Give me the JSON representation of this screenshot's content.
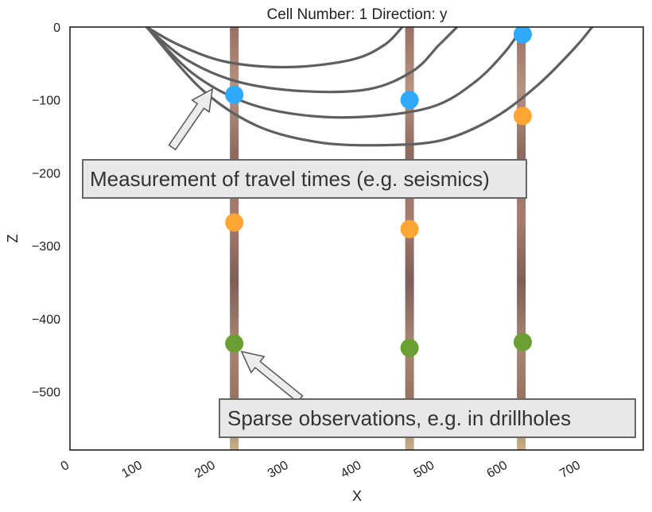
{
  "chart_data": {
    "type": "scatter",
    "title": "Cell Number: 1 Direction: y",
    "xlabel": "X",
    "ylabel": "Z",
    "xlim": [
      0,
      785
    ],
    "ylim": [
      -580,
      0
    ],
    "x_ticks": [
      0,
      100,
      200,
      300,
      400,
      500,
      600,
      700
    ],
    "y_ticks": [
      0,
      -100,
      -200,
      -300,
      -400,
      -500
    ],
    "grid": false,
    "drillholes": [
      {
        "x": 225,
        "z_top": 0,
        "z_bottom": -580
      },
      {
        "x": 465,
        "z_top": 0,
        "z_bottom": -580
      },
      {
        "x": 618,
        "z_top": 0,
        "z_bottom": -580
      }
    ],
    "series": [
      {
        "color": "#2ea9fb",
        "points": [
          [
            225,
            -93
          ],
          [
            465,
            -100
          ],
          [
            620,
            -10
          ]
        ]
      },
      {
        "color": "#ffa534",
        "points": [
          [
            225,
            -268
          ],
          [
            465,
            -277
          ],
          [
            620,
            -122
          ]
        ]
      },
      {
        "color": "#6a9f33",
        "points": [
          [
            225,
            -434
          ],
          [
            465,
            -440
          ],
          [
            620,
            -432
          ]
        ]
      }
    ],
    "curves": [
      [
        [
          105,
          0
        ],
        [
          150,
          -25
        ],
        [
          215,
          -48
        ],
        [
          300,
          -55
        ],
        [
          385,
          -45
        ],
        [
          430,
          -25
        ],
        [
          455,
          0
        ]
      ],
      [
        [
          105,
          0
        ],
        [
          160,
          -45
        ],
        [
          230,
          -75
        ],
        [
          320,
          -88
        ],
        [
          410,
          -85
        ],
        [
          470,
          -60
        ],
        [
          505,
          -25
        ],
        [
          530,
          0
        ]
      ],
      [
        [
          105,
          0
        ],
        [
          170,
          -65
        ],
        [
          245,
          -105
        ],
        [
          330,
          -122
        ],
        [
          420,
          -122
        ],
        [
          500,
          -108
        ],
        [
          555,
          -75
        ],
        [
          595,
          -35
        ],
        [
          620,
          0
        ]
      ],
      [
        [
          105,
          0
        ],
        [
          180,
          -85
        ],
        [
          255,
          -135
        ],
        [
          340,
          -158
        ],
        [
          430,
          -162
        ],
        [
          510,
          -155
        ],
        [
          580,
          -125
        ],
        [
          640,
          -80
        ],
        [
          690,
          -30
        ],
        [
          715,
          0
        ]
      ]
    ],
    "annotations": [
      {
        "text": "Measurement of travel times (e.g. seismics)",
        "arrow_from": [
          140,
          -165
        ],
        "arrow_to": [
          195,
          -85
        ]
      },
      {
        "text": "Sparse observations, e.g. in drillholes",
        "arrow_from": [
          315,
          -510
        ],
        "arrow_to": [
          235,
          -445
        ]
      }
    ]
  }
}
